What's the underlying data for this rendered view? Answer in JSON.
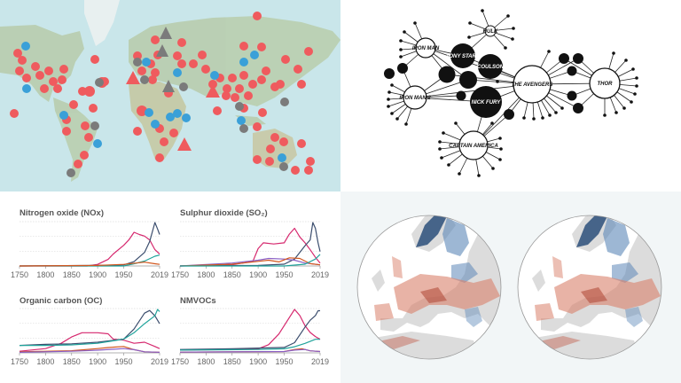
{
  "panels": {
    "top_left": {
      "type": "map",
      "description": "World map with red, blue and gray hazard marker icons"
    },
    "top_right": {
      "type": "network",
      "nodes": [
        {
          "label": "IRON MAN",
          "filled": false
        },
        {
          "label": "IRON MAN 2",
          "filled": false
        },
        {
          "label": "TONY STARK",
          "filled": true
        },
        {
          "label": "COULSON",
          "filled": true
        },
        {
          "label": "NICK FURY",
          "filled": true
        },
        {
          "label": "HULK",
          "filled": false
        },
        {
          "label": "THE AVENGERS",
          "filled": false
        },
        {
          "label": "THOR",
          "filled": false
        },
        {
          "label": "CAPTAIN AMERICA",
          "filled": false
        }
      ]
    },
    "bottom_right": {
      "type": "map",
      "description": "Two circular Europe maps of river trends, red and blue"
    }
  },
  "marker_colors": {
    "red": "#ef5b5e",
    "blue": "#3aa0d8",
    "gray": "#7b7b7b"
  },
  "chart_data": [
    {
      "type": "line",
      "title": "Nitrogen oxide (NOx)",
      "x_ticks": [
        "1750",
        "1800",
        "1850",
        "1900",
        "1950",
        "2019"
      ],
      "xlim": [
        1750,
        2019
      ],
      "grid": true,
      "series": [
        {
          "name": "pink",
          "color": "#d6286e",
          "x": [
            1750,
            1880,
            1900,
            1920,
            1930,
            1950,
            1960,
            1970,
            1980,
            1990,
            2000,
            2010,
            2019
          ],
          "values": [
            0,
            0,
            3,
            12,
            22,
            38,
            48,
            62,
            58,
            55,
            48,
            30,
            22
          ]
        },
        {
          "name": "navy",
          "color": "#3c4e6e",
          "x": [
            1750,
            1900,
            1950,
            1970,
            1990,
            2000,
            2010,
            2015,
            2019
          ],
          "values": [
            0,
            1,
            2,
            8,
            25,
            45,
            80,
            68,
            58
          ]
        },
        {
          "name": "teal",
          "color": "#20a39b",
          "x": [
            1750,
            1950,
            1970,
            1990,
            2010,
            2019
          ],
          "values": [
            0,
            0,
            4,
            9,
            18,
            20
          ]
        },
        {
          "name": "orange",
          "color": "#d2571e",
          "x": [
            1750,
            1900,
            1950,
            1980,
            1990,
            2010,
            2019
          ],
          "values": [
            0,
            1,
            3,
            6,
            7,
            4,
            3
          ]
        }
      ]
    },
    {
      "type": "line",
      "title": "Sulphur dioxide (SO₂)",
      "x_ticks": [
        "1750",
        "1800",
        "1850",
        "1900",
        "1950",
        "2019"
      ],
      "xlim": [
        1750,
        2019
      ],
      "grid": true,
      "series": [
        {
          "name": "pink",
          "color": "#d6286e",
          "x": [
            1750,
            1850,
            1890,
            1900,
            1910,
            1930,
            1950,
            1960,
            1970,
            1980,
            1990,
            2000,
            2010,
            2019
          ],
          "values": [
            0,
            2,
            8,
            30,
            40,
            38,
            40,
            55,
            65,
            50,
            40,
            28,
            15,
            5
          ]
        },
        {
          "name": "navy",
          "color": "#3c4e6e",
          "x": [
            1750,
            1900,
            1950,
            1970,
            1990,
            2000,
            2005,
            2010,
            2015,
            2019
          ],
          "values": [
            0,
            1,
            3,
            12,
            35,
            45,
            75,
            65,
            40,
            25
          ]
        },
        {
          "name": "purple",
          "color": "#8a5fc4",
          "x": [
            1750,
            1850,
            1900,
            1920,
            1950,
            1970,
            1990,
            2019
          ],
          "values": [
            0,
            5,
            10,
            13,
            12,
            10,
            5,
            2
          ]
        },
        {
          "name": "orange",
          "color": "#d2571e",
          "x": [
            1750,
            1850,
            1900,
            1920,
            1940,
            1960,
            1980,
            2000,
            2019
          ],
          "values": [
            0,
            3,
            8,
            10,
            7,
            14,
            13,
            4,
            2
          ]
        },
        {
          "name": "teal",
          "color": "#20a39b",
          "x": [
            1750,
            1950,
            1990,
            2010,
            2019
          ],
          "values": [
            0,
            0,
            3,
            12,
            20
          ]
        }
      ]
    },
    {
      "type": "line",
      "title": "Organic carbon (OC)",
      "x_ticks": [
        "1750",
        "1800",
        "1850",
        "1900",
        "1950",
        "2019"
      ],
      "xlim": [
        1750,
        2019
      ],
      "grid": true,
      "series": [
        {
          "name": "pink",
          "color": "#d6286e",
          "x": [
            1750,
            1800,
            1830,
            1850,
            1870,
            1900,
            1920,
            1930,
            1950,
            1970,
            1990,
            2010,
            2019
          ],
          "values": [
            3,
            8,
            18,
            30,
            38,
            38,
            36,
            26,
            24,
            18,
            20,
            12,
            8
          ]
        },
        {
          "name": "navy",
          "color": "#3c4e6e",
          "x": [
            1750,
            1800,
            1850,
            1900,
            1950,
            1970,
            1990,
            2000,
            2010,
            2019
          ],
          "values": [
            14,
            16,
            17,
            20,
            26,
            45,
            75,
            80,
            70,
            55
          ]
        },
        {
          "name": "teal",
          "color": "#20a39b",
          "x": [
            1750,
            1800,
            1850,
            1900,
            1950,
            1970,
            1990,
            2010,
            2015,
            2019
          ],
          "values": [
            14,
            14,
            15,
            18,
            26,
            38,
            55,
            70,
            82,
            78
          ]
        },
        {
          "name": "orange",
          "color": "#d2571e",
          "x": [
            1750,
            1850,
            1900,
            1920,
            1950,
            1970,
            1990,
            2019
          ],
          "values": [
            2,
            4,
            8,
            10,
            12,
            6,
            2,
            1
          ]
        },
        {
          "name": "purple",
          "color": "#8a5fc4",
          "x": [
            1750,
            1850,
            1900,
            1950,
            1970,
            1990,
            2019
          ],
          "values": [
            1,
            3,
            5,
            8,
            6,
            2,
            1
          ]
        }
      ]
    },
    {
      "type": "line",
      "title": "NMVOCs",
      "x_ticks": [
        "1750",
        "1800",
        "1850",
        "1900",
        "1950",
        "2019"
      ],
      "xlim": [
        1750,
        2019
      ],
      "grid": true,
      "series": [
        {
          "name": "pink",
          "color": "#d6286e",
          "x": [
            1750,
            1850,
            1900,
            1920,
            1940,
            1960,
            1970,
            1980,
            1990,
            2000,
            2010,
            2019
          ],
          "values": [
            4,
            5,
            6,
            12,
            28,
            52,
            64,
            55,
            40,
            30,
            24,
            20
          ]
        },
        {
          "name": "navy",
          "color": "#3c4e6e",
          "x": [
            1750,
            1850,
            1900,
            1950,
            1970,
            1990,
            2000,
            2010,
            2015,
            2019
          ],
          "values": [
            5,
            6,
            7,
            8,
            15,
            38,
            48,
            55,
            62,
            62
          ]
        },
        {
          "name": "teal",
          "color": "#20a39b",
          "x": [
            1750,
            1900,
            1950,
            1970,
            1990,
            2010,
            2019
          ],
          "values": [
            4,
            5,
            6,
            9,
            14,
            20,
            20
          ]
        },
        {
          "name": "orange",
          "color": "#d2571e",
          "x": [
            1750,
            1950,
            1970,
            1985,
            2000,
            2019
          ],
          "values": [
            1,
            2,
            5,
            6,
            3,
            2
          ]
        },
        {
          "name": "purple",
          "color": "#8a5fc4",
          "x": [
            1750,
            1950,
            1970,
            1990,
            2000,
            2019
          ],
          "values": [
            1,
            2,
            4,
            5,
            3,
            2
          ]
        }
      ]
    }
  ]
}
